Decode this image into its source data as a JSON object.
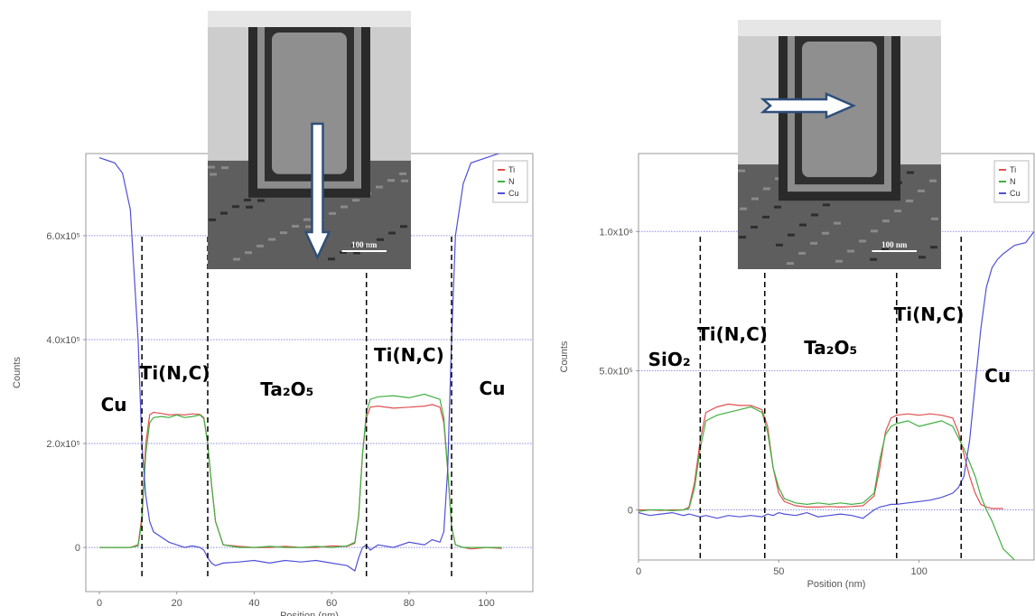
{
  "chart_data": [
    {
      "type": "line",
      "x_label": "Position (nm)",
      "y_label": "Counts",
      "scale_bar_label": "100 nm",
      "xlim": [
        -3.5,
        112
      ],
      "ylim": [
        -85000,
        758000
      ],
      "xticks": [
        0,
        20,
        40,
        60,
        80,
        100
      ],
      "yticks": [
        0,
        {
          "value": 200000,
          "label": "2.0x10⁵"
        },
        {
          "value": 400000,
          "label": "4.0x10⁵"
        },
        {
          "value": 600000,
          "label": "6.0x10⁵"
        }
      ],
      "grid": true,
      "legend": "upper right",
      "boundaries": [
        11,
        28,
        69,
        91
      ],
      "regions": [
        "Cu",
        "Ti(N,C)",
        "Ta₂O₅",
        "Ti(N,C)",
        "Cu"
      ],
      "x": [
        0,
        2,
        4,
        6,
        8,
        10,
        11,
        12,
        13,
        14,
        16,
        18,
        20,
        22,
        24,
        26,
        27,
        28,
        29,
        30,
        32,
        36,
        40,
        44,
        48,
        52,
        56,
        60,
        64,
        66,
        67,
        68,
        69,
        70,
        72,
        76,
        80,
        84,
        86,
        88,
        89,
        90,
        91,
        92,
        94,
        96,
        100,
        104
      ],
      "series": [
        {
          "name": "Ti",
          "color": "#e05050",
          "values": [
            0,
            0,
            0,
            0,
            0,
            5000,
            60000,
            200000,
            255000,
            260000,
            258000,
            255000,
            256000,
            255000,
            257000,
            256000,
            250000,
            200000,
            120000,
            50000,
            5000,
            2000,
            0,
            0,
            2000,
            0,
            0,
            3000,
            2000,
            8000,
            60000,
            180000,
            250000,
            270000,
            272000,
            268000,
            270000,
            272000,
            275000,
            270000,
            240000,
            150000,
            40000,
            5000,
            0,
            -3000,
            0,
            -2000
          ]
        },
        {
          "name": "N",
          "color": "#40b040",
          "values": [
            0,
            0,
            0,
            0,
            0,
            3000,
            50000,
            180000,
            240000,
            250000,
            252000,
            250000,
            255000,
            250000,
            252000,
            255000,
            248000,
            200000,
            120000,
            50000,
            5000,
            0,
            0,
            2000,
            0,
            0,
            2000,
            0,
            3000,
            10000,
            60000,
            180000,
            260000,
            285000,
            290000,
            292000,
            288000,
            295000,
            290000,
            285000,
            250000,
            150000,
            40000,
            5000,
            0,
            0,
            0,
            0
          ]
        },
        {
          "name": "Cu",
          "color": "#5050d8",
          "values": [
            750000,
            745000,
            740000,
            720000,
            650000,
            400000,
            200000,
            100000,
            50000,
            30000,
            20000,
            10000,
            5000,
            0,
            3000,
            0,
            -5000,
            -20000,
            -30000,
            -35000,
            -30000,
            -28000,
            -25000,
            -30000,
            -25000,
            -28000,
            -25000,
            -30000,
            -35000,
            -45000,
            -20000,
            0,
            5000,
            -5000,
            5000,
            0,
            10000,
            5000,
            15000,
            10000,
            30000,
            150000,
            400000,
            600000,
            700000,
            740000,
            750000,
            760000
          ]
        }
      ]
    },
    {
      "type": "line",
      "x_label": "Position (nm)",
      "y_label": "Counts",
      "scale_bar_label": "100 nm",
      "xlim": [
        0,
        141
      ],
      "ylim": [
        -180000,
        1280000
      ],
      "xticks": [
        0,
        50,
        100
      ],
      "yticks": [
        0,
        {
          "value": 500000,
          "label": "5.0x10⁵"
        },
        {
          "value": 1000000,
          "label": "1.0x10⁶"
        }
      ],
      "grid": true,
      "legend": "upper right",
      "boundaries": [
        22,
        45,
        92,
        115
      ],
      "regions": [
        "SiO₂",
        "Ti(N,C)",
        "Ta₂O₅",
        "Ti(N,C)",
        "Cu"
      ],
      "x": [
        0,
        4,
        8,
        12,
        16,
        18,
        20,
        22,
        24,
        28,
        32,
        36,
        40,
        44,
        46,
        48,
        50,
        52,
        56,
        60,
        64,
        68,
        72,
        76,
        80,
        84,
        86,
        88,
        90,
        92,
        96,
        100,
        104,
        108,
        112,
        114,
        116,
        118,
        120,
        122,
        124,
        126,
        128,
        130,
        134,
        138,
        141
      ],
      "series": [
        {
          "name": "Ti",
          "color": "#e05050",
          "values": [
            0,
            0,
            -2000,
            0,
            0,
            10000,
            100000,
            250000,
            350000,
            370000,
            380000,
            375000,
            375000,
            360000,
            300000,
            150000,
            60000,
            30000,
            15000,
            10000,
            10000,
            12000,
            10000,
            12000,
            15000,
            50000,
            150000,
            280000,
            330000,
            340000,
            345000,
            340000,
            345000,
            340000,
            330000,
            280000,
            200000,
            120000,
            60000,
            20000,
            10000,
            5000,
            5000,
            5000,
            null,
            null,
            null
          ]
        },
        {
          "name": "N",
          "color": "#40b040",
          "values": [
            -5000,
            0,
            0,
            -3000,
            0,
            5000,
            80000,
            220000,
            320000,
            340000,
            350000,
            360000,
            370000,
            350000,
            280000,
            150000,
            80000,
            40000,
            25000,
            20000,
            25000,
            20000,
            25000,
            20000,
            25000,
            60000,
            180000,
            270000,
            300000,
            310000,
            320000,
            300000,
            310000,
            320000,
            300000,
            260000,
            220000,
            170000,
            120000,
            50000,
            0,
            -40000,
            -90000,
            -140000,
            -180000,
            null,
            null
          ]
        },
        {
          "name": "Cu",
          "color": "#5050d8",
          "values": [
            -10000,
            -20000,
            -15000,
            -10000,
            -20000,
            -15000,
            -20000,
            -25000,
            -20000,
            -30000,
            -20000,
            -25000,
            -20000,
            -25000,
            -15000,
            -20000,
            -10000,
            -15000,
            -20000,
            -10000,
            -25000,
            -20000,
            -15000,
            -20000,
            -30000,
            0,
            10000,
            15000,
            20000,
            20000,
            25000,
            30000,
            35000,
            45000,
            60000,
            80000,
            120000,
            250000,
            450000,
            650000,
            800000,
            870000,
            900000,
            920000,
            950000,
            960000,
            1000000
          ]
        }
      ]
    }
  ]
}
